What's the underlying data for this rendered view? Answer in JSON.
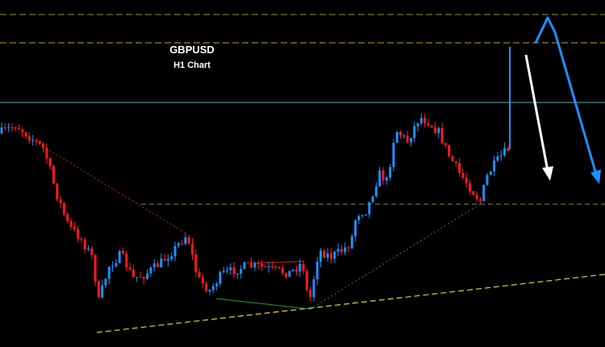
{
  "header": {
    "title": "GBPUSD",
    "subtitle": "H1 Chart"
  }
}
